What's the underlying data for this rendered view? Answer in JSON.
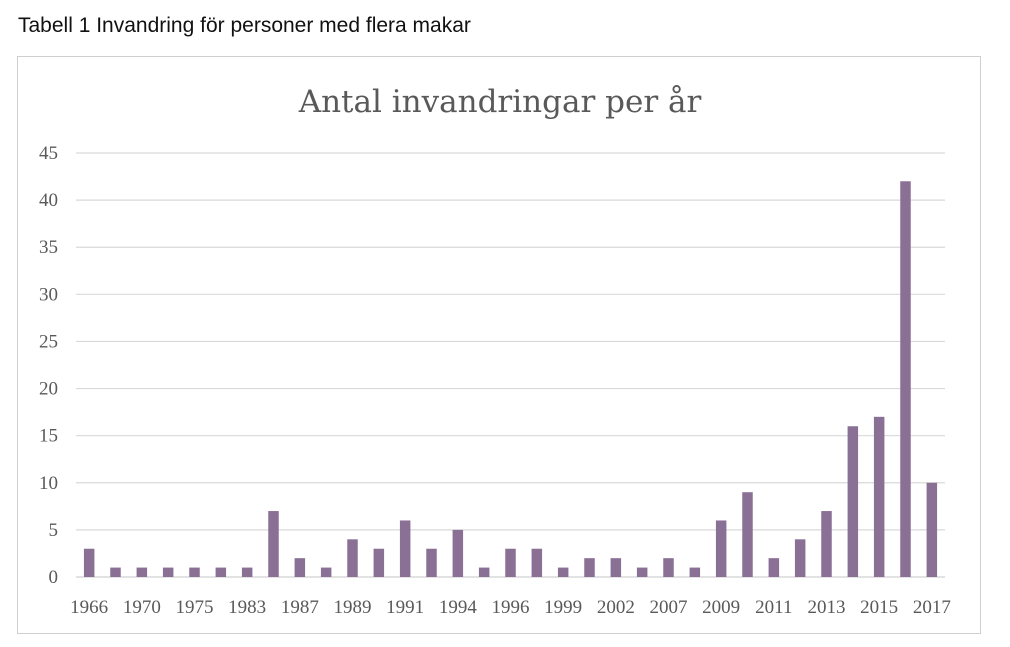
{
  "caption": "Tabell 1 Invandring för personer med flera makar",
  "colors": {
    "bar": "#8b7096",
    "grid": "#d9d9d9",
    "axis": "#d9d9d9",
    "text": "#595959"
  },
  "chart_data": {
    "type": "bar",
    "title": "Antal invandringar per år",
    "xlabel": "",
    "ylabel": "",
    "ylim": [
      0,
      45
    ],
    "yticks": [
      0,
      5,
      10,
      15,
      20,
      25,
      30,
      35,
      40,
      45
    ],
    "grid": true,
    "legend": "none",
    "categories": [
      "1966",
      "",
      "1970",
      "",
      "1975",
      "",
      "1983",
      "",
      "1987",
      "",
      "1989",
      "",
      "1991",
      "",
      "1994",
      "",
      "1996",
      "",
      "1999",
      "",
      "2002",
      "",
      "2007",
      "",
      "2009",
      "",
      "2011",
      "",
      "2013",
      "",
      "2015",
      "",
      "2017"
    ],
    "values": [
      3,
      1,
      1,
      1,
      1,
      1,
      1,
      7,
      2,
      1,
      4,
      3,
      6,
      3,
      5,
      1,
      3,
      3,
      1,
      2,
      2,
      1,
      2,
      1,
      6,
      9,
      2,
      4,
      7,
      16,
      17,
      42,
      10
    ]
  }
}
